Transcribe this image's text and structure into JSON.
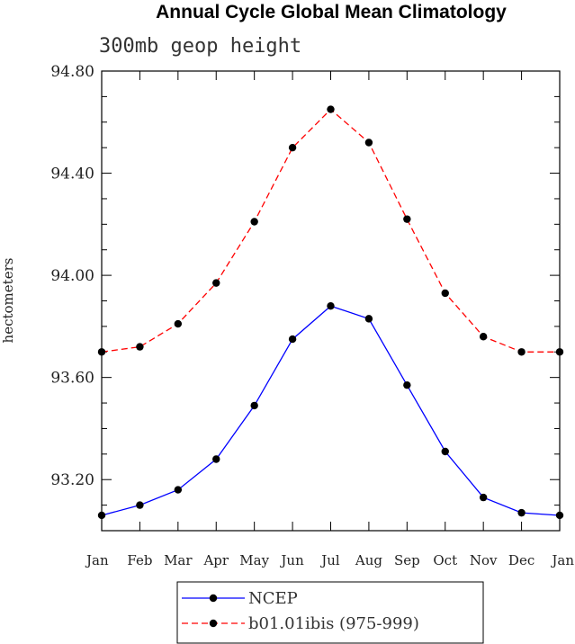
{
  "chart_data": {
    "type": "line",
    "title": "Annual Cycle Global Mean Climatology",
    "subtitle": "300mb geop height",
    "xlabel": "",
    "ylabel": "hectometers",
    "categories": [
      "Jan",
      "Feb",
      "Mar",
      "Apr",
      "May",
      "Jun",
      "Jul",
      "Aug",
      "Sep",
      "Oct",
      "Nov",
      "Dec",
      "Jan"
    ],
    "ylim": [
      93.0,
      94.8
    ],
    "yticks": [
      93.2,
      93.6,
      94.0,
      94.4,
      94.8
    ],
    "ytick_labels": [
      "93.20",
      "93.60",
      "94.00",
      "94.40",
      "94.80"
    ],
    "grid": false,
    "legend_position": "bottom-center",
    "series": [
      {
        "name": "NCEP",
        "color": "#0000ff",
        "dash": "solid",
        "marker": "circle",
        "values": [
          93.06,
          93.1,
          93.16,
          93.28,
          93.49,
          93.75,
          93.88,
          93.83,
          93.57,
          93.31,
          93.13,
          93.07,
          93.06
        ]
      },
      {
        "name": "b01.01ibis (975-999)",
        "color": "#ff0000",
        "dash": "dashed",
        "marker": "circle",
        "values": [
          93.7,
          93.72,
          93.81,
          93.97,
          94.21,
          94.5,
          94.65,
          94.52,
          94.22,
          93.93,
          93.76,
          93.7,
          93.7
        ]
      }
    ]
  }
}
